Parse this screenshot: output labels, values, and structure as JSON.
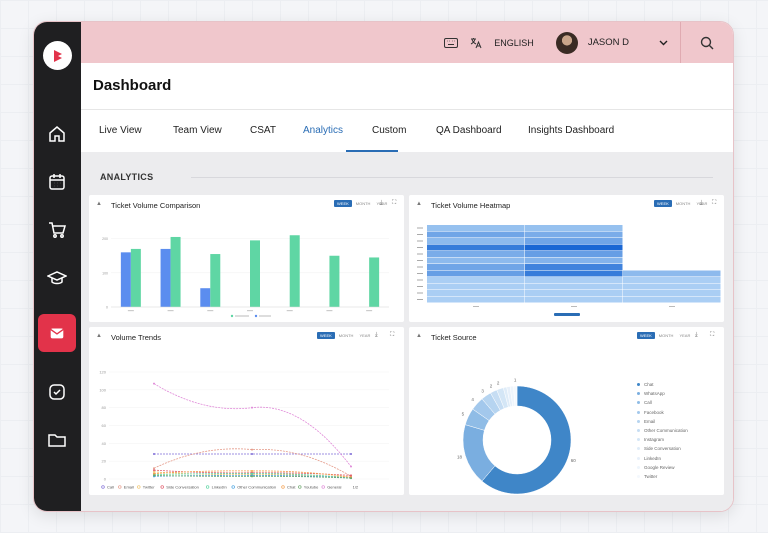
{
  "user": {
    "name": "JASON D",
    "language": "ENGLISH"
  },
  "page": {
    "title": "Dashboard"
  },
  "tabs": [
    {
      "label": "Live View"
    },
    {
      "label": "Team View"
    },
    {
      "label": "CSAT"
    },
    {
      "label": "Analytics",
      "active": true
    },
    {
      "label": "Custom"
    },
    {
      "label": "QA Dashboard"
    },
    {
      "label": "Insights Dashboard"
    }
  ],
  "section": {
    "title": "ANALYTICS"
  },
  "sidebar": {
    "icons": [
      "home-icon",
      "calendar-icon",
      "cart-icon",
      "graduation-cap-icon",
      "mail-icon",
      "check-circle-icon",
      "folder-icon"
    ],
    "active": "mail-icon"
  },
  "colors": {
    "accent": "#2a6db5",
    "active_nav": "#e2334a",
    "topbar": "#f0c7cc",
    "sidebar": "#1f1f21"
  },
  "cards": {
    "comparison": {
      "title": "Ticket Volume Comparison",
      "toggle": [
        "WEEK",
        "MONTH",
        "YEAR"
      ]
    },
    "heatmap": {
      "title": "Ticket Volume Heatmap",
      "toggle": [
        "WEEK",
        "MONTH",
        "YEAR"
      ]
    },
    "trends": {
      "title": "Volume Trends",
      "toggle": [
        "WEEK",
        "MONTH",
        "YEAR"
      ]
    },
    "source": {
      "title": "Ticket Source",
      "toggle": [
        "WEEK",
        "MONTH",
        "YEAR"
      ]
    }
  },
  "chart_data": [
    {
      "type": "bar",
      "categories": [
        "",
        "",
        "",
        "",
        "",
        "",
        ""
      ],
      "series": [
        {
          "color": "#5b8def",
          "values": [
            160,
            170,
            55,
            0,
            0,
            0,
            0
          ]
        },
        {
          "color": "#5fd6a4",
          "values": [
            170,
            205,
            155,
            195,
            210,
            150,
            145
          ]
        }
      ],
      "ylim": [
        0,
        240
      ],
      "yticks": [
        "200",
        "100",
        "0"
      ]
    },
    {
      "type": "heatmap",
      "rows": 12,
      "columns": 3,
      "cells": [
        [
          0.3,
          0.3,
          0
        ],
        [
          0.5,
          0.45,
          0
        ],
        [
          0.35,
          0.5,
          0
        ],
        [
          0.8,
          0.95,
          0
        ],
        [
          0.45,
          0.55,
          0
        ],
        [
          0.35,
          0.4,
          0
        ],
        [
          0.5,
          0.75,
          0
        ],
        [
          0.55,
          0.8,
          0.35
        ],
        [
          0.2,
          0.2,
          0.2
        ],
        [
          0.2,
          0.2,
          0.2
        ],
        [
          0.2,
          0.2,
          0.2
        ],
        [
          0.2,
          0.2,
          0.2
        ]
      ]
    },
    {
      "type": "line",
      "yticks": [
        "120",
        "100",
        "80",
        "60",
        "40",
        "20",
        "0"
      ],
      "ylim": [
        0,
        120
      ],
      "x": [
        0,
        1,
        2
      ],
      "series": [
        {
          "name": "Call",
          "color": "#7d6bd6",
          "values": [
            28,
            28,
            28
          ]
        },
        {
          "name": "Email",
          "color": "#e59b8a",
          "values": [
            12,
            33,
            3
          ]
        },
        {
          "name": "Twitter",
          "color": "#f0c36a",
          "values": [
            8,
            5,
            2
          ]
        },
        {
          "name": "Side Conversation",
          "color": "#e05a6a",
          "values": [
            10,
            7,
            4
          ]
        },
        {
          "name": "LinkedIn",
          "color": "#5fd6a4",
          "values": [
            5,
            6,
            1
          ]
        },
        {
          "name": "Other Communication",
          "color": "#4aa3df",
          "values": [
            3,
            4,
            1
          ]
        },
        {
          "name": "Chat",
          "color": "#f29c4a",
          "values": [
            6,
            9,
            2
          ]
        },
        {
          "name": "Youtube",
          "color": "#6aa56a",
          "values": [
            4,
            3,
            1
          ]
        },
        {
          "name": "General",
          "color": "#e08ad8",
          "values": [
            107,
            80,
            14
          ]
        }
      ],
      "legend_page": "1/2"
    },
    {
      "type": "pie",
      "slices": [
        {
          "label": "Chat",
          "value": 60,
          "color": "#3f86c8"
        },
        {
          "label": "WhatsApp",
          "value": 18,
          "color": "#7aaee0"
        },
        {
          "label": "Call",
          "value": 5,
          "color": "#8fbce6"
        },
        {
          "label": "Facebook",
          "value": 4,
          "color": "#a3c8ec"
        },
        {
          "label": "Email",
          "value": 3,
          "color": "#b6d4f0"
        },
        {
          "label": "Other Communication",
          "value": 2,
          "color": "#c6ddf3"
        },
        {
          "label": "Instagram",
          "value": 2,
          "color": "#d4e6f6"
        },
        {
          "label": "Side Conversation",
          "value": 1,
          "color": "#dfecf8"
        },
        {
          "label": "LinkedIn",
          "value": 1,
          "color": "#e7f0fa"
        },
        {
          "label": "Google Review",
          "value": 1,
          "color": "#eef5fc"
        },
        {
          "label": "Twitter",
          "value": 1,
          "color": "#f4f8fd"
        }
      ],
      "value_labels": [
        "60",
        "18",
        "5",
        "4",
        "3",
        "2",
        "1"
      ]
    }
  ]
}
